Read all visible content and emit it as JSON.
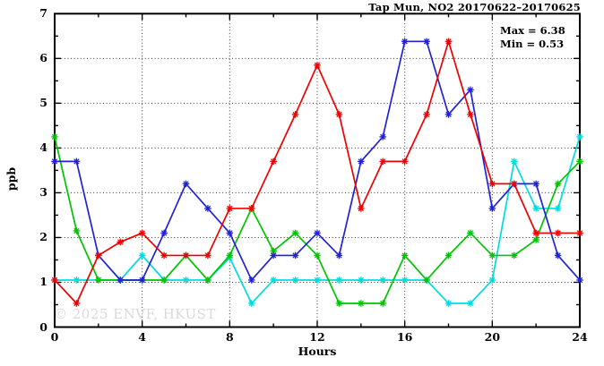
{
  "title": "Tap Mun, NO2 20170622–20170625",
  "annotation": {
    "max": "Max = 6.38",
    "min": "Min = 0.53"
  },
  "watermark": "© 2025 ENVF, HKUST",
  "colors": {
    "axis": "#000000",
    "grid": "#333333",
    "background": "#ffffff",
    "watermark": "#d9d9d9"
  },
  "chart_data": {
    "type": "line",
    "title": "Tap Mun, NO2 20170622–20170625",
    "xlabel": "Hours",
    "ylabel": "ppb",
    "xlim": [
      0,
      24
    ],
    "ylim": [
      0,
      7
    ],
    "x_ticks_major": [
      0,
      4,
      8,
      12,
      16,
      20,
      24
    ],
    "x_ticks_minor": [
      2,
      6,
      10,
      14,
      18,
      22
    ],
    "y_ticks_major": [
      0,
      1,
      2,
      3,
      4,
      5,
      6,
      7
    ],
    "y_ticks_minor": [
      0.5,
      1.5,
      2.5,
      3.5,
      4.5,
      5.5,
      6.5
    ],
    "grid_x": [
      4,
      8,
      12,
      16,
      20
    ],
    "grid_y": [
      1,
      2,
      3,
      4,
      5,
      6
    ],
    "legend_position": "none",
    "marker": "asterisk",
    "stats": {
      "max": 6.38,
      "min": 0.53
    },
    "x": [
      0,
      1,
      2,
      3,
      4,
      5,
      6,
      7,
      8,
      9,
      10,
      11,
      12,
      13,
      14,
      15,
      16,
      17,
      18,
      19,
      20,
      21,
      22,
      23,
      24
    ],
    "series": [
      {
        "name": "cyan-series",
        "color": "#00dcdc",
        "values": [
          1.05,
          1.05,
          1.05,
          1.05,
          1.6,
          1.05,
          1.05,
          1.05,
          1.55,
          0.53,
          1.05,
          1.05,
          1.05,
          1.05,
          1.05,
          1.05,
          1.05,
          1.05,
          0.53,
          0.53,
          1.05,
          3.7,
          2.65,
          2.65,
          4.25
        ]
      },
      {
        "name": "green-series",
        "color": "#00c400",
        "values": [
          4.25,
          2.15,
          1.05,
          1.05,
          1.05,
          1.05,
          1.6,
          1.05,
          1.6,
          2.65,
          1.7,
          2.1,
          1.6,
          0.53,
          0.53,
          0.53,
          1.6,
          1.05,
          1.6,
          2.1,
          1.6,
          1.6,
          1.95,
          3.2,
          3.7
        ]
      },
      {
        "name": "blue-series",
        "color": "#2121d6",
        "values": [
          3.7,
          3.7,
          1.6,
          1.05,
          1.05,
          2.1,
          3.2,
          2.65,
          2.1,
          1.05,
          1.6,
          1.6,
          2.1,
          1.6,
          3.7,
          4.25,
          6.38,
          6.38,
          4.75,
          5.3,
          2.65,
          3.2,
          3.2,
          1.6,
          1.05
        ]
      },
      {
        "name": "red-series",
        "color": "#ee0000",
        "values": [
          1.05,
          0.53,
          1.6,
          1.9,
          2.1,
          1.6,
          1.6,
          1.6,
          2.65,
          2.65,
          3.7,
          4.75,
          5.85,
          4.75,
          2.65,
          3.7,
          3.7,
          4.75,
          6.38,
          4.75,
          3.2,
          3.2,
          2.1,
          2.1,
          2.1
        ]
      }
    ]
  }
}
